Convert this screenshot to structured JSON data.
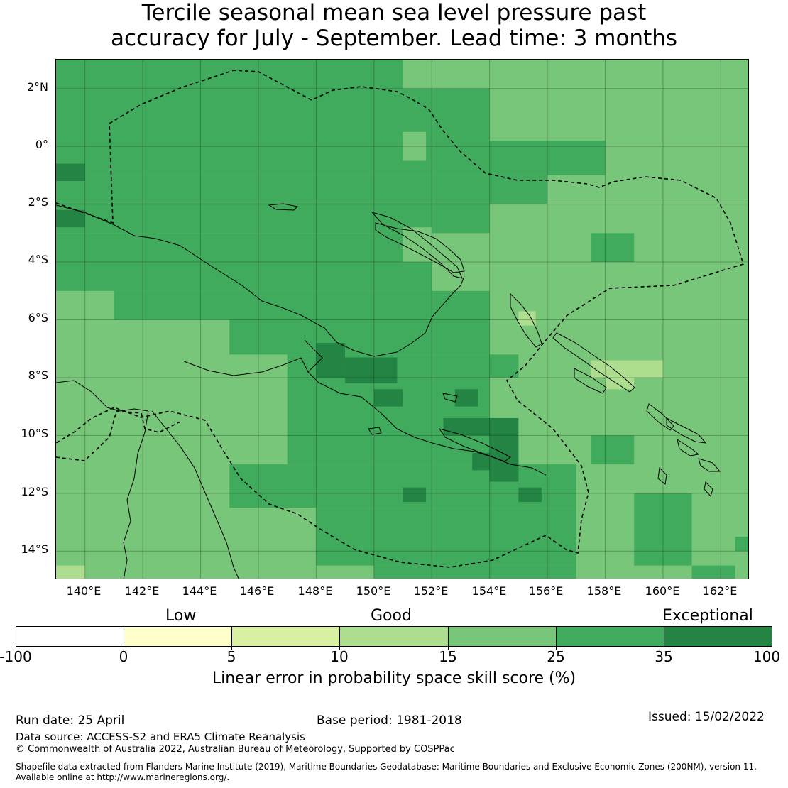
{
  "title": {
    "line1": "Tercile seasonal mean sea level pressure past",
    "line2": "accuracy for July - September. Lead time: 3 months"
  },
  "map": {
    "lat_labels": [
      "2°N",
      "0°",
      "2°S",
      "4°S",
      "6°S",
      "8°S",
      "10°S",
      "12°S",
      "14°S"
    ],
    "lon_labels": [
      "140°E",
      "142°E",
      "144°E",
      "146°E",
      "148°E",
      "150°E",
      "152°E",
      "154°E",
      "156°E",
      "158°E",
      "160°E",
      "162°E"
    ],
    "extent": {
      "lon": [
        139.0,
        163.0
      ],
      "lat": [
        -15.0,
        3.0
      ]
    },
    "grid_step_deg": 0.8,
    "skill_colors": {
      "c15_25": "#78c679",
      "c25_35": "#41ab5d",
      "c35_100": "#238443",
      "c10_15": "#addd8e"
    },
    "boundary_line": "dashed-black",
    "coastline_color": "#000000"
  },
  "categories": {
    "low": "Low",
    "good": "Good",
    "exceptional": "Exceptional"
  },
  "colorbar": {
    "ticks": [
      "-100",
      "0",
      "5",
      "10",
      "15",
      "25",
      "35",
      "100"
    ],
    "colors": [
      "#ffffff",
      "#ffffcc",
      "#d9f0a3",
      "#addd8e",
      "#78c679",
      "#41ab5d",
      "#238443"
    ],
    "label": "Linear error in probability space skill score (%)"
  },
  "footer": {
    "run_date": "Run date: 25 April",
    "base_period": "Base period: 1981-2018",
    "issued": "Issued: 15/02/2022",
    "data_source": "Data source: ACCESS-S2 and ERA5 Climate Reanalysis",
    "copyright": "© Commonwealth of Australia 2022, Australian Bureau of Meteorology, Supported by COSPPac",
    "shapefile_line1": "Shapefile data extracted from Flanders Marine Institute (2019), Maritime Boundaries Geodatabase: Maritime Boundaries and Exclusive Economic Zones (200NM), version 11.",
    "shapefile_line2": "Available online at http://www.marineregions.org/."
  }
}
